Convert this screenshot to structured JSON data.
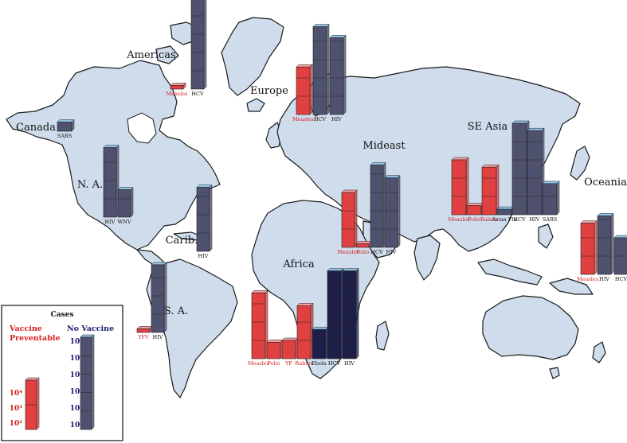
{
  "colors": {
    "vaccine_preventable": "#e04040",
    "vaccine_preventable_top": "#f2a0a0",
    "no_vaccine": "#4f526e",
    "no_vaccine_top": "#8fc4e8",
    "africa_no_vaccine": "#1e1f48",
    "vaccine_label": "#d42020",
    "no_vaccine_label": "#1e2070"
  },
  "legend": {
    "title": "Cases",
    "vaccine_label_1": "Vaccine",
    "vaccine_label_2": "Preventable",
    "no_vaccine_label": "No Vaccine",
    "no_vaccine_ticks": [
      "10⁷",
      "10⁶",
      "10⁵",
      "10⁴",
      "10³",
      "10²"
    ],
    "vaccine_ticks": [
      "10⁴",
      "10³",
      "10²"
    ]
  },
  "chart_data": {
    "type": "bar",
    "title": "",
    "y_scale": "log10",
    "unit": "Cases",
    "regions": [
      {
        "name": "Americas",
        "bars": [
          {
            "label": "Measles",
            "group": "vaccine",
            "log_cases": 2.2
          },
          {
            "label": "HCV",
            "group": "no_vaccine",
            "log_cases": 7.2
          }
        ]
      },
      {
        "name": "Canada",
        "bars": [
          {
            "label": "SARS",
            "group": "no_vaccine",
            "log_cases": 2.5
          }
        ]
      },
      {
        "name": "N. A.",
        "bars": [
          {
            "label": "HIV",
            "group": "no_vaccine",
            "log_cases": 5.8
          },
          {
            "label": "WNV",
            "group": "no_vaccine",
            "log_cases": 3.5
          }
        ]
      },
      {
        "name": "Carib.",
        "bars": [
          {
            "label": "HIV",
            "group": "no_vaccine",
            "log_cases": 5.5
          }
        ]
      },
      {
        "name": "S. A.",
        "bars": [
          {
            "label": "YFV",
            "group": "vaccine",
            "log_cases": 2.2
          },
          {
            "label": "HIV",
            "group": "no_vaccine",
            "log_cases": 5.7
          }
        ]
      },
      {
        "name": "Europe",
        "bars": [
          {
            "label": "Measles",
            "group": "vaccine",
            "log_cases": 4.6
          },
          {
            "label": "HCV",
            "group": "no_vaccine",
            "log_cases": 6.8
          },
          {
            "label": "HIV",
            "group": "no_vaccine",
            "log_cases": 6.2
          }
        ]
      },
      {
        "name": "Mideast",
        "bars": [
          {
            "label": "Measles",
            "group": "vaccine",
            "log_cases": 5.0
          },
          {
            "label": "Polio",
            "group": "vaccine",
            "log_cases": 2.2
          },
          {
            "label": "HCV",
            "group": "no_vaccine",
            "log_cases": 6.5
          },
          {
            "label": "HIV",
            "group": "no_vaccine",
            "log_cases": 5.8
          }
        ]
      },
      {
        "name": "Africa",
        "bars": [
          {
            "label": "Measles",
            "group": "vaccine",
            "log_cases": 5.6
          },
          {
            "label": "Polio",
            "group": "vaccine",
            "log_cases": 2.9
          },
          {
            "label": "YF",
            "group": "vaccine",
            "log_cases": 3.0
          },
          {
            "label": "Rabies",
            "group": "vaccine",
            "log_cases": 4.9
          },
          {
            "label": "Ebola",
            "group": "no_vaccine",
            "log_cases": 3.6
          },
          {
            "label": "HCV",
            "group": "no_vaccine",
            "log_cases": 6.8
          },
          {
            "label": "HIV",
            "group": "no_vaccine",
            "log_cases": 6.8
          }
        ]
      },
      {
        "name": "SE Asia",
        "bars": [
          {
            "label": "Measles",
            "group": "vaccine",
            "log_cases": 5.0
          },
          {
            "label": "Polio",
            "group": "vaccine",
            "log_cases": 2.5
          },
          {
            "label": "Rabies",
            "group": "vaccine",
            "log_cases": 4.6
          },
          {
            "label": "Avian Flu",
            "group": "no_vaccine",
            "log_cases": 2.3
          },
          {
            "label": "HCV",
            "group": "no_vaccine",
            "log_cases": 7.0
          },
          {
            "label": "HIV",
            "group": "no_vaccine",
            "log_cases": 6.6
          },
          {
            "label": "SARS",
            "group": "no_vaccine",
            "log_cases": 3.7
          }
        ]
      },
      {
        "name": "Oceania",
        "bars": [
          {
            "label": "Measles",
            "group": "vaccine",
            "log_cases": 4.8
          },
          {
            "label": "HIV",
            "group": "no_vaccine",
            "log_cases": 5.2
          },
          {
            "label": "HCV",
            "group": "no_vaccine",
            "log_cases": 4.0
          }
        ]
      }
    ]
  }
}
